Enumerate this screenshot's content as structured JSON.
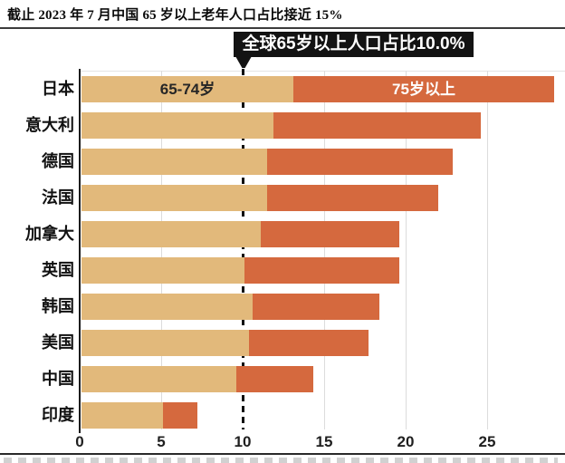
{
  "page": {
    "title": "截止 2023 年 7 月中国 65 岁以上老年人口占比接近 15%"
  },
  "annotation": {
    "label": "全球65岁以上人口占比10.0%",
    "value": 10.0
  },
  "chart_data": {
    "type": "bar",
    "orientation": "horizontal",
    "stacked": true,
    "title": "截止 2023 年 7 月中国 65 岁以上老年人口占比接近 15%",
    "categories": [
      "日本",
      "意大利",
      "德国",
      "法国",
      "加拿大",
      "英国",
      "韩国",
      "美国",
      "中国",
      "印度"
    ],
    "series": [
      {
        "name": "65-74岁",
        "color": "#e2b97b",
        "values": [
          13.0,
          11.8,
          11.4,
          11.4,
          11.0,
          10.0,
          10.5,
          10.3,
          9.5,
          5.0
        ]
      },
      {
        "name": "75岁以上",
        "color": "#d5693e",
        "values": [
          16.0,
          12.7,
          11.4,
          10.5,
          8.5,
          9.5,
          7.8,
          7.3,
          4.7,
          2.1
        ]
      }
    ],
    "totals": [
      29.0,
      24.5,
      22.8,
      21.9,
      19.5,
      19.5,
      18.3,
      17.6,
      14.2,
      7.1
    ],
    "x_ticks": [
      0,
      5,
      10,
      15,
      20,
      25
    ],
    "xlim": [
      0,
      29.7
    ],
    "grid": true,
    "reference_line": {
      "x": 10,
      "style": "dashed",
      "label": "全球65岁以上人口占比10.0%"
    },
    "legend_position": "inside-first-bar"
  },
  "colors": {
    "bar_young": "#e2b97b",
    "bar_old": "#d5693e",
    "annotation_bg": "#131313",
    "annotation_text": "#ffffff",
    "axis": "#1c1c1c",
    "grid": "#dcdcdc",
    "text": "#111111"
  }
}
